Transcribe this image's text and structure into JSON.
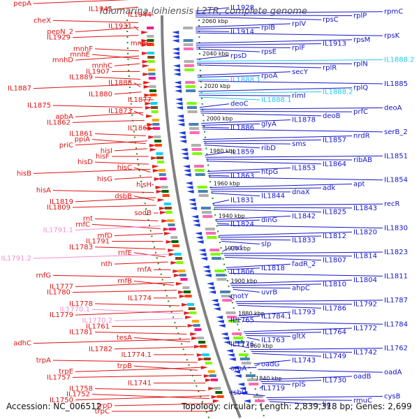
{
  "title": "Idiomarina loihiensis L2TR, complete genome",
  "footer": {
    "accession": "Accession: NC_006512",
    "topology": "Topology: circular; Length: 2,839,318 bp; Genes: 2,699"
  },
  "colors": {
    "left_label": "#e01010",
    "left_pink": "#f090d0",
    "right_label": "#1414c8",
    "right_cyan": "#20c8f0",
    "backbone": "#808080",
    "dots": "#1a8a1a"
  },
  "kbp_ticks": [
    "2060 kbp",
    "2040 kbp",
    "2020 kbp",
    "2000 kbp",
    "1980 kbp",
    "1960 kbp",
    "1940 kbp",
    "1920 kbp",
    "1900 kbp",
    "1880 kbp",
    "1860 kbp",
    "1840 kbp"
  ],
  "left_labels": [
    {
      "t": "pepA",
      "c": "red"
    },
    {
      "t": "IL1945",
      "c": "red"
    },
    {
      "t": "IL1944",
      "c": "red"
    },
    {
      "t": "cheX",
      "c": "red"
    },
    {
      "t": "IL1931",
      "c": "red"
    },
    {
      "t": "pepN_2",
      "c": "red"
    },
    {
      "t": "IL1929",
      "c": "red"
    },
    {
      "t": "mnhG",
      "c": "red"
    },
    {
      "t": "mnhF",
      "c": "red"
    },
    {
      "t": "mnhE",
      "c": "red"
    },
    {
      "t": "mnhD",
      "c": "red"
    },
    {
      "t": "mnhC",
      "c": "red"
    },
    {
      "t": "IL1907",
      "c": "red"
    },
    {
      "t": "IL1889",
      "c": "red"
    },
    {
      "t": "IL1888",
      "c": "red"
    },
    {
      "t": "IL1887",
      "c": "red"
    },
    {
      "t": "IL1880",
      "c": "red"
    },
    {
      "t": "IL1877",
      "c": "red"
    },
    {
      "t": "IL1875",
      "c": "red"
    },
    {
      "t": "IL1873",
      "c": "red"
    },
    {
      "t": "apbA",
      "c": "red"
    },
    {
      "t": "IL1862",
      "c": "red"
    },
    {
      "t": "IL1865",
      "c": "red"
    },
    {
      "t": "IL1861",
      "c": "red"
    },
    {
      "t": "ppiA",
      "c": "red"
    },
    {
      "t": "priC",
      "c": "red"
    },
    {
      "t": "hisI",
      "c": "red"
    },
    {
      "t": "hisF",
      "c": "red"
    },
    {
      "t": "hisD",
      "c": "red"
    },
    {
      "t": "hisC",
      "c": "red"
    },
    {
      "t": "hisB",
      "c": "red"
    },
    {
      "t": "hisG",
      "c": "red"
    },
    {
      "t": "hisH",
      "c": "red"
    },
    {
      "t": "hisA",
      "c": "red"
    },
    {
      "t": "dsbB",
      "c": "red"
    },
    {
      "t": "IL1819",
      "c": "red"
    },
    {
      "t": "IL1809",
      "c": "red"
    },
    {
      "t": "sodB",
      "c": "red"
    },
    {
      "t": "rnt",
      "c": "red"
    },
    {
      "t": "rnfC",
      "c": "red"
    },
    {
      "t": "IL1791.1",
      "c": "pink"
    },
    {
      "t": "rnfD",
      "c": "red"
    },
    {
      "t": "IL1791",
      "c": "red"
    },
    {
      "t": "IL1783",
      "c": "red"
    },
    {
      "t": "rnfE",
      "c": "red"
    },
    {
      "t": "IL1791.2",
      "c": "pink"
    },
    {
      "t": "nth",
      "c": "red"
    },
    {
      "t": "rnfA",
      "c": "red"
    },
    {
      "t": "rnfG",
      "c": "red"
    },
    {
      "t": "rnfB",
      "c": "red"
    },
    {
      "t": "IL1777",
      "c": "red"
    },
    {
      "t": "IL1780",
      "c": "red"
    },
    {
      "t": "IL1774",
      "c": "red"
    },
    {
      "t": "IL1778",
      "c": "red"
    },
    {
      "t": "IL1770.1",
      "c": "pink"
    },
    {
      "t": "IL1779",
      "c": "red"
    },
    {
      "t": "IL1770.2",
      "c": "pink"
    },
    {
      "t": "IL1761",
      "c": "red"
    },
    {
      "t": "IL1781",
      "c": "red"
    },
    {
      "t": "tesA",
      "c": "red"
    },
    {
      "t": "adhC",
      "c": "red"
    },
    {
      "t": "IL1782",
      "c": "red"
    },
    {
      "t": "IL1774.1",
      "c": "red"
    },
    {
      "t": "trpA",
      "c": "red"
    },
    {
      "t": "trpB",
      "c": "red"
    },
    {
      "t": "trpE",
      "c": "red"
    },
    {
      "t": "IL1757",
      "c": "red"
    },
    {
      "t": "IL1741",
      "c": "red"
    },
    {
      "t": "IL1758",
      "c": "red"
    },
    {
      "t": "IL1752",
      "c": "red"
    },
    {
      "t": "IL1750",
      "c": "red"
    },
    {
      "t": "trpD",
      "c": "red"
    },
    {
      "t": "trpC",
      "c": "red"
    }
  ],
  "right_labels": [
    {
      "t": "IL1928",
      "c": "blue"
    },
    {
      "t": "rpmC",
      "c": "blue"
    },
    {
      "t": "rplP",
      "c": "blue"
    },
    {
      "t": "rpsC",
      "c": "blue"
    },
    {
      "t": "rplV",
      "c": "blue"
    },
    {
      "t": "rplB",
      "c": "blue"
    },
    {
      "t": "IL1914",
      "c": "blue"
    },
    {
      "t": "rpsK",
      "c": "blue"
    },
    {
      "t": "rpsM",
      "c": "blue"
    },
    {
      "t": "IL1913",
      "c": "blue"
    },
    {
      "t": "rplF",
      "c": "blue"
    },
    {
      "t": "rpsE",
      "c": "blue"
    },
    {
      "t": "rpsD",
      "c": "blue"
    },
    {
      "t": "IL1888.2",
      "c": "cyan"
    },
    {
      "t": "rplN",
      "c": "blue"
    },
    {
      "t": "rplR",
      "c": "blue"
    },
    {
      "t": "secY",
      "c": "blue"
    },
    {
      "t": "rpoA",
      "c": "blue"
    },
    {
      "t": "IL1888.1",
      "c": "cyan"
    },
    {
      "t": "IL1885",
      "c": "blue"
    },
    {
      "t": "rplQ",
      "c": "blue"
    },
    {
      "t": "IL1888.2",
      "c": "cyan"
    },
    {
      "t": "rimI",
      "c": "blue"
    },
    {
      "t": "IL1888.1",
      "c": "cyan"
    },
    {
      "t": "deoC",
      "c": "blue"
    },
    {
      "t": "deoA",
      "c": "blue"
    },
    {
      "t": "prfC",
      "c": "blue"
    },
    {
      "t": "deoB",
      "c": "blue"
    },
    {
      "t": "IL1878",
      "c": "blue"
    },
    {
      "t": "glyA",
      "c": "blue"
    },
    {
      "t": "IL1886",
      "c": "blue"
    },
    {
      "t": "serB_2",
      "c": "blue"
    },
    {
      "t": "nrdR",
      "c": "blue"
    },
    {
      "t": "IL1857",
      "c": "blue"
    },
    {
      "t": "sms",
      "c": "blue"
    },
    {
      "t": "ribD",
      "c": "blue"
    },
    {
      "t": "IL1859",
      "c": "blue"
    },
    {
      "t": "IL1851",
      "c": "blue"
    },
    {
      "t": "ribAB",
      "c": "blue"
    },
    {
      "t": "IL1864",
      "c": "blue"
    },
    {
      "t": "IL1853",
      "c": "blue"
    },
    {
      "t": "htpG",
      "c": "blue"
    },
    {
      "t": "IL1863",
      "c": "blue"
    },
    {
      "t": "IL1854",
      "c": "blue"
    },
    {
      "t": "apt",
      "c": "blue"
    },
    {
      "t": "adk",
      "c": "blue"
    },
    {
      "t": "dnaX",
      "c": "blue"
    },
    {
      "t": "IL1844",
      "c": "blue"
    },
    {
      "t": "IL1831",
      "c": "blue"
    },
    {
      "t": "recR",
      "c": "blue"
    },
    {
      "t": "IL1843",
      "c": "blue"
    },
    {
      "t": "IL1825",
      "c": "blue"
    },
    {
      "t": "IL1842",
      "c": "blue"
    },
    {
      "t": "dinG",
      "c": "blue"
    },
    {
      "t": "IL1824",
      "c": "blue"
    },
    {
      "t": "IL1830",
      "c": "blue"
    },
    {
      "t": "IL1820",
      "c": "blue"
    },
    {
      "t": "IL1812",
      "c": "blue"
    },
    {
      "t": "IL1833",
      "c": "blue"
    },
    {
      "t": "slp",
      "c": "blue"
    },
    {
      "t": "rnd",
      "c": "blue"
    },
    {
      "t": "IL1823",
      "c": "blue"
    },
    {
      "t": "IL1814",
      "c": "blue"
    },
    {
      "t": "IL1807",
      "c": "blue"
    },
    {
      "t": "fadR_2",
      "c": "blue"
    },
    {
      "t": "IL1818",
      "c": "blue"
    },
    {
      "t": "IL1806",
      "c": "blue"
    },
    {
      "t": "IL1811",
      "c": "blue"
    },
    {
      "t": "IL1804",
      "c": "blue"
    },
    {
      "t": "IL1810",
      "c": "blue"
    },
    {
      "t": "ahpC",
      "c": "blue"
    },
    {
      "t": "uvrB",
      "c": "blue"
    },
    {
      "t": "motY",
      "c": "blue"
    },
    {
      "t": "IL1787",
      "c": "blue"
    },
    {
      "t": "IL1792",
      "c": "blue"
    },
    {
      "t": "IL1786",
      "c": "blue"
    },
    {
      "t": "IL1793",
      "c": "blue"
    },
    {
      "t": "IL1784.1",
      "c": "blue"
    },
    {
      "t": "IL1765",
      "c": "blue"
    },
    {
      "t": "IL1784",
      "c": "blue"
    },
    {
      "t": "IL1772",
      "c": "blue"
    },
    {
      "t": "IL1764",
      "c": "blue"
    },
    {
      "t": "gltX",
      "c": "blue"
    },
    {
      "t": "IL1763",
      "c": "blue"
    },
    {
      "t": "IL1776",
      "c": "blue"
    },
    {
      "t": "IL1762",
      "c": "blue"
    },
    {
      "t": "IL1742",
      "c": "blue"
    },
    {
      "t": "IL1749",
      "c": "blue"
    },
    {
      "t": "IL1743",
      "c": "blue"
    },
    {
      "t": "oadG",
      "c": "blue"
    },
    {
      "t": "oraA",
      "c": "blue"
    },
    {
      "t": "oadA",
      "c": "blue"
    },
    {
      "t": "oadB",
      "c": "blue"
    },
    {
      "t": "IL1730",
      "c": "blue"
    },
    {
      "t": "rplS",
      "c": "blue"
    },
    {
      "t": "IL1719",
      "c": "blue"
    },
    {
      "t": "rsbU",
      "c": "blue"
    },
    {
      "t": "cysB",
      "c": "blue"
    },
    {
      "t": "rmuC",
      "c": "blue"
    },
    {
      "t": "lig",
      "c": "blue"
    }
  ]
}
